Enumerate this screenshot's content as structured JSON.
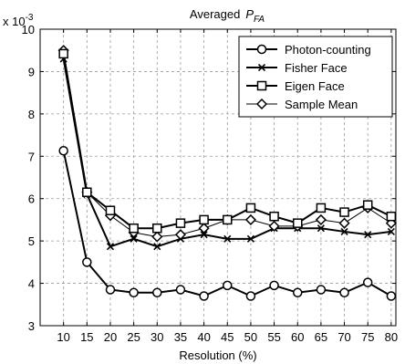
{
  "chart_data": {
    "type": "line",
    "title_main": "Averaged",
    "title_symbol": "P",
    "title_subscript": "FA",
    "xlabel": "Resolution (%)",
    "ylabel": "",
    "exponent_label": "x 10",
    "exponent_power": "-3",
    "x": [
      10,
      15,
      20,
      25,
      30,
      35,
      40,
      45,
      50,
      55,
      60,
      65,
      70,
      75,
      80
    ],
    "x_tick_labels": [
      "10",
      "15",
      "20",
      "25",
      "30",
      "35",
      "40",
      "45",
      "50",
      "55",
      "60",
      "65",
      "70",
      "75",
      "80"
    ],
    "y_ticks": [
      3,
      4,
      5,
      6,
      7,
      8,
      9,
      10
    ],
    "y_tick_labels": [
      "3",
      "4",
      "5",
      "6",
      "7",
      "8",
      "9",
      "10"
    ],
    "xlim": [
      5,
      81
    ],
    "ylim": [
      3,
      10
    ],
    "y_unit_scale": "1e-3",
    "grid": true,
    "legend_position": "top-right",
    "series": [
      {
        "name": "Photon-counting",
        "marker": "circle",
        "color": "#000000",
        "values": [
          7.13,
          4.5,
          3.85,
          3.78,
          3.78,
          3.85,
          3.7,
          3.95,
          3.7,
          3.95,
          3.78,
          3.85,
          3.78,
          4.02,
          3.7
        ]
      },
      {
        "name": "Fisher Face",
        "marker": "x",
        "color": "#000000",
        "values": [
          9.3,
          6.1,
          4.87,
          5.05,
          4.87,
          5.05,
          5.15,
          5.05,
          5.05,
          5.3,
          5.3,
          5.3,
          5.22,
          5.15,
          5.22
        ]
      },
      {
        "name": "Eigen Face",
        "marker": "square",
        "color": "#000000",
        "values": [
          9.42,
          6.15,
          5.72,
          5.3,
          5.3,
          5.42,
          5.5,
          5.5,
          5.78,
          5.58,
          5.42,
          5.78,
          5.68,
          5.85,
          5.58
        ]
      },
      {
        "name": "Sample Mean",
        "marker": "diamond",
        "color": "#000000",
        "values": [
          9.5,
          6.15,
          5.6,
          5.2,
          5.1,
          5.15,
          5.3,
          5.5,
          5.5,
          5.35,
          5.35,
          5.5,
          5.42,
          5.78,
          5.42
        ]
      }
    ]
  }
}
